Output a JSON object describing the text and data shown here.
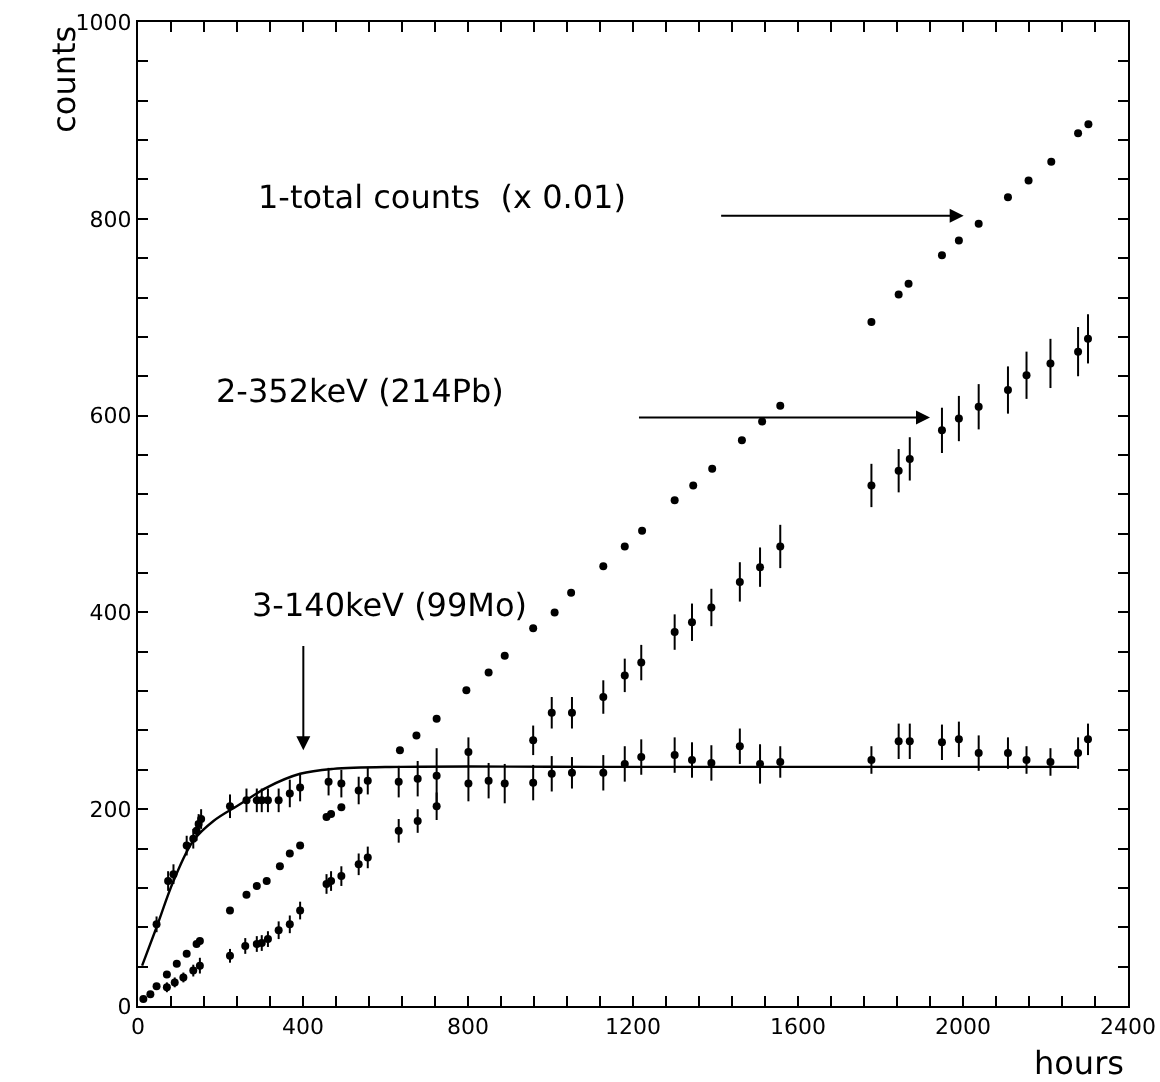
{
  "chart_data": {
    "type": "scatter",
    "xlabel": "hours",
    "ylabel": "counts",
    "marker": "circle",
    "grid": false,
    "xlim": [
      0,
      2400
    ],
    "ylim": [
      0,
      1000
    ],
    "xticks": [
      0,
      {
        "value": 80,
        "label": null
      },
      {
        "value": 160,
        "label": null
      },
      {
        "value": 240,
        "label": null
      },
      {
        "value": 320,
        "label": null
      },
      400,
      {
        "value": 480,
        "label": null
      },
      {
        "value": 560,
        "label": null
      },
      {
        "value": 640,
        "label": null
      },
      {
        "value": 720,
        "label": null
      },
      800,
      {
        "value": 880,
        "label": null
      },
      {
        "value": 960,
        "label": null
      },
      {
        "value": 1040,
        "label": null
      },
      {
        "value": 1120,
        "label": null
      },
      1200,
      {
        "value": 1280,
        "label": null
      },
      {
        "value": 1360,
        "label": null
      },
      {
        "value": 1440,
        "label": null
      },
      {
        "value": 1520,
        "label": null
      },
      1600,
      {
        "value": 1680,
        "label": null
      },
      {
        "value": 1760,
        "label": null
      },
      {
        "value": 1840,
        "label": null
      },
      {
        "value": 1920,
        "label": null
      },
      2000,
      {
        "value": 2080,
        "label": null
      },
      {
        "value": 2160,
        "label": null
      },
      {
        "value": 2240,
        "label": null
      },
      {
        "value": 2320,
        "label": null
      },
      2400
    ],
    "yticks": [
      0,
      {
        "value": 40,
        "label": null
      },
      {
        "value": 80,
        "label": null
      },
      {
        "value": 120,
        "label": null
      },
      {
        "value": 160,
        "label": null
      },
      200,
      {
        "value": 240,
        "label": null
      },
      {
        "value": 280,
        "label": null
      },
      {
        "value": 320,
        "label": null
      },
      {
        "value": 360,
        "label": null
      },
      400,
      {
        "value": 440,
        "label": null
      },
      {
        "value": 480,
        "label": null
      },
      {
        "value": 520,
        "label": null
      },
      {
        "value": 560,
        "label": null
      },
      600,
      {
        "value": 640,
        "label": null
      },
      {
        "value": 680,
        "label": null
      },
      {
        "value": 720,
        "label": null
      },
      {
        "value": 760,
        "label": null
      },
      800,
      {
        "value": 840,
        "label": null
      },
      {
        "value": 880,
        "label": null
      },
      {
        "value": 920,
        "label": null
      },
      {
        "value": 960,
        "label": null
      },
      1000
    ],
    "annotations": [
      "1-total counts  (x 0.01)",
      "2-352keV (214Pb)",
      "3-140keV (99Mo)"
    ],
    "series": [
      {
        "color": "#000000",
        "x": [
          13,
          30,
          45,
          70,
          94,
          118,
          142,
          150,
          223,
          263,
          288,
          312,
          344,
          368,
          393,
          457,
          468,
          493,
          635,
          675,
          724,
          796,
          850,
          889,
          958,
          1010,
          1050,
          1128,
          1180,
          1222,
          1301,
          1346,
          1392,
          1464,
          1513,
          1557,
          1778,
          1844,
          1868,
          1949,
          1990,
          2038,
          2109,
          2159,
          2214,
          2279,
          2304
        ],
        "values": [
          7,
          12,
          20,
          32,
          43,
          53,
          63,
          66,
          97,
          113,
          122,
          127,
          142,
          155,
          163,
          192,
          195,
          202,
          260,
          275,
          292,
          321,
          339,
          356,
          384,
          400,
          420,
          447,
          467,
          483,
          514,
          529,
          546,
          575,
          594,
          610,
          695,
          723,
          734,
          763,
          778,
          795,
          822,
          839,
          858,
          887,
          896
        ]
      },
      {
        "color": "#000000",
        "x": [
          70,
          89,
          110,
          134,
          150,
          223,
          260,
          288,
          300,
          315,
          341,
          368,
          393,
          457,
          468,
          493,
          535,
          557,
          632,
          678,
          724,
          801,
          958,
          1003,
          1052,
          1128,
          1180,
          1220,
          1301,
          1343,
          1390,
          1459,
          1508,
          1557,
          1778,
          1844,
          1871,
          1949,
          1990,
          2038,
          2109,
          2154,
          2212,
          2279,
          2303
        ],
        "values": [
          19,
          24,
          29,
          36,
          41,
          51,
          61,
          63,
          64,
          68,
          77,
          83,
          97,
          124,
          127,
          132,
          144,
          151,
          178,
          188,
          203,
          258,
          270,
          298,
          298,
          314,
          336,
          349,
          380,
          390,
          405,
          431,
          446,
          467,
          529,
          544,
          556,
          585,
          597,
          609,
          626,
          641,
          653,
          665,
          678
        ],
        "errors": [
          5,
          5,
          5,
          6,
          8,
          7,
          8,
          8,
          8,
          8,
          9,
          9,
          9,
          10,
          10,
          10,
          11,
          11,
          12,
          12,
          14,
          15,
          15,
          16,
          16,
          17,
          17,
          18,
          18,
          19,
          19,
          20,
          20,
          22,
          22,
          22,
          22,
          23,
          23,
          23,
          24,
          24,
          25,
          25,
          25
        ]
      },
      {
        "color": "#000000",
        "x": [
          45,
          73,
          86,
          118,
          134,
          142,
          147,
          153,
          223,
          263,
          288,
          300,
          315,
          341,
          368,
          393,
          462,
          493,
          535,
          557,
          632,
          678,
          724,
          801,
          850,
          889,
          958,
          1003,
          1052,
          1128,
          1180,
          1220,
          1301,
          1343,
          1390,
          1459,
          1508,
          1557,
          1778,
          1844,
          1871,
          1949,
          1990,
          2038,
          2109,
          2154,
          2212,
          2279,
          2303
        ],
        "values": [
          83,
          127,
          134,
          163,
          170,
          178,
          185,
          190,
          203,
          209,
          209,
          209,
          209,
          209,
          216,
          222,
          228,
          226,
          219,
          229,
          228,
          231,
          234,
          226,
          229,
          226,
          227,
          236,
          237,
          237,
          246,
          253,
          255,
          250,
          247,
          264,
          246,
          248,
          250,
          269,
          269,
          268,
          271,
          257,
          257,
          250,
          248,
          257,
          271
        ],
        "errors": [
          8,
          10,
          10,
          10,
          10,
          10,
          10,
          10,
          12,
          12,
          12,
          12,
          12,
          12,
          14,
          14,
          14,
          14,
          14,
          14,
          16,
          18,
          28,
          18,
          18,
          20,
          18,
          18,
          16,
          18,
          18,
          18,
          18,
          18,
          18,
          18,
          20,
          16,
          14,
          18,
          18,
          18,
          18,
          18,
          16,
          14,
          14,
          16,
          16
        ]
      },
      {
        "type": "line",
        "marker": "none",
        "color": "#000000",
        "x": [
          10,
          45,
          86,
          134,
          183,
          247,
          312,
          393,
          473,
          635,
          1200,
          1800,
          2276
        ],
        "values": [
          41,
          80,
          127,
          168,
          188,
          205,
          222,
          236,
          241,
          243,
          243,
          243,
          243
        ]
      }
    ]
  }
}
